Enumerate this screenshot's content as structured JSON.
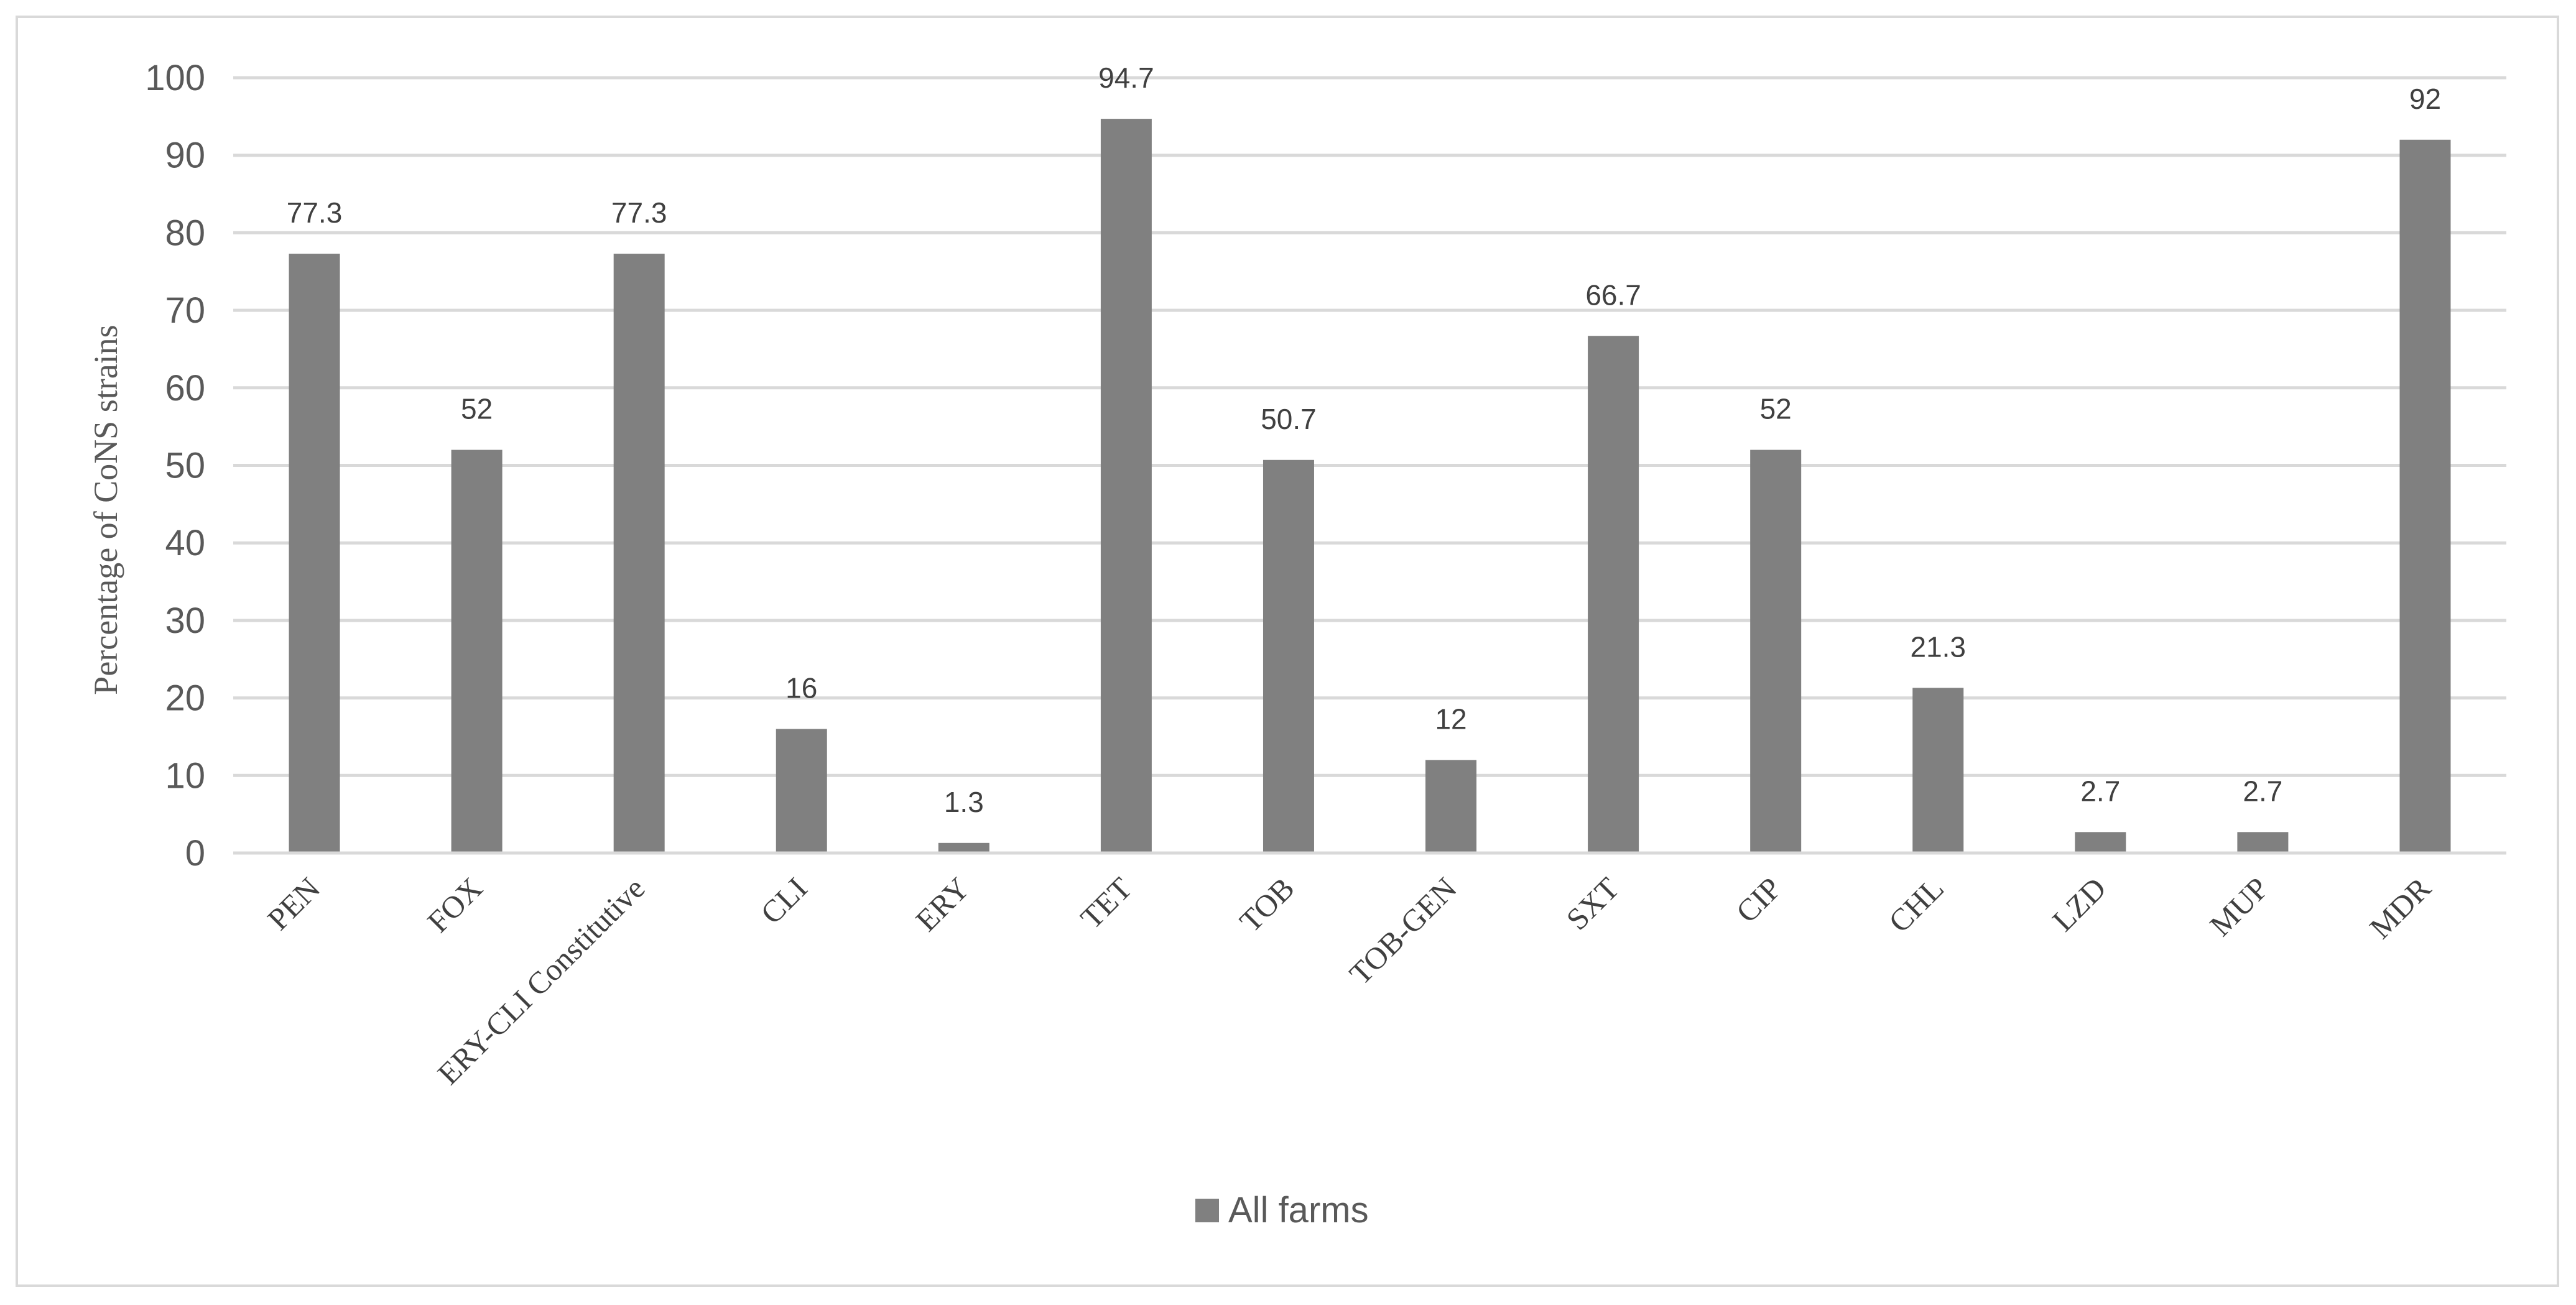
{
  "chart_data": {
    "type": "bar",
    "categories": [
      "PEN",
      "FOX",
      "ERY-CLI Constitutive",
      "CLI",
      "ERY",
      "TET",
      "TOB",
      "TOB-GEN",
      "SXT",
      "CIP",
      "CHL",
      "LZD",
      "MUP",
      "MDR"
    ],
    "series": [
      {
        "name": "All farms",
        "values": [
          77.3,
          52,
          77.3,
          16,
          1.3,
          94.7,
          50.7,
          12,
          66.7,
          52,
          21.3,
          2.7,
          2.7,
          92
        ],
        "labels": [
          "77.3",
          "52",
          "77.3",
          "16",
          "1.3",
          "94.7",
          "50.7",
          "12",
          "66.7",
          "52",
          "21.3",
          "2.7",
          "2.7",
          "92"
        ],
        "color": "#808080"
      }
    ],
    "ylabel": "Percentage of  CoNS strains",
    "xlabel": "",
    "ylim": [
      0,
      100
    ],
    "yticks": [
      0,
      10,
      20,
      30,
      40,
      50,
      60,
      70,
      80,
      90,
      100
    ],
    "grid": true,
    "gridline_color": "#d9d9d9",
    "legend_position": "bottom"
  }
}
